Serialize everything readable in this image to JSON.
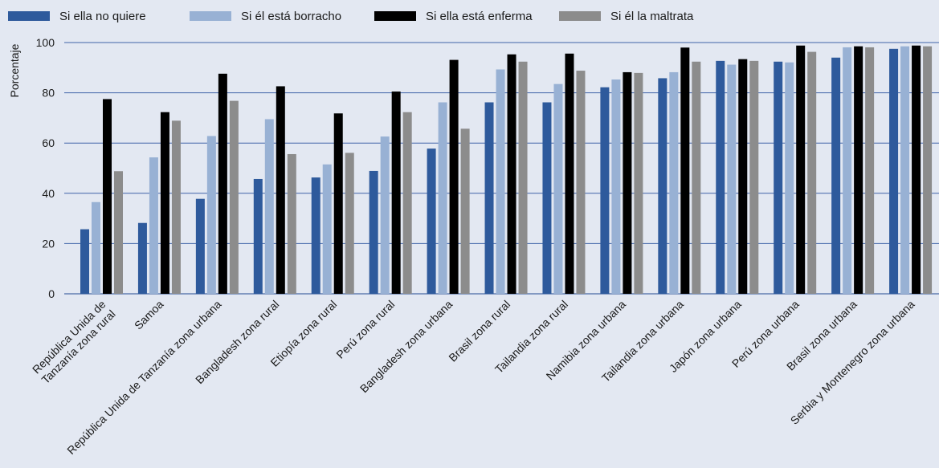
{
  "chart_data": {
    "type": "bar",
    "ylabel": "Porcentaje",
    "ylim": [
      0,
      100
    ],
    "yticks": [
      0,
      20,
      40,
      60,
      80,
      100
    ],
    "grid": true,
    "legend_position": "top",
    "categories": [
      [
        "República Unida de",
        "Tanzanía zona rural"
      ],
      [
        "Samoa"
      ],
      [
        "República Unida de Tanzanía zona urbana"
      ],
      [
        "Bangladesh zona rural"
      ],
      [
        "Etiopía zona rural"
      ],
      [
        "Perú zona rural"
      ],
      [
        "Bangladesh zona urbana"
      ],
      [
        "Brasil zona rural"
      ],
      [
        "Tailandia zona rural"
      ],
      [
        "Namibia zona urbana"
      ],
      [
        "Tailandia zona urbana"
      ],
      [
        "Japón zona urbana"
      ],
      [
        "Perú zona urbana"
      ],
      [
        "Brasil zona urbana"
      ],
      [
        "Serbia y Montenegro zona urbana"
      ]
    ],
    "series": [
      {
        "name": "Si ella no quiere",
        "color": "#2e5a9c",
        "values": [
          25.7,
          28.2,
          37.8,
          45.7,
          46.3,
          48.9,
          57.8,
          76.2,
          76.2,
          82.2,
          85.8,
          92.7,
          92.4,
          94.0,
          97.5
        ]
      },
      {
        "name": "Si él está borracho",
        "color": "#98b1d4",
        "values": [
          36.5,
          54.3,
          62.8,
          69.5,
          51.5,
          62.6,
          76.2,
          89.3,
          83.5,
          85.3,
          88.2,
          91.2,
          92.1,
          98.1,
          98.5
        ]
      },
      {
        "name": "Si ella está enferma",
        "color": "#000000",
        "values": [
          77.5,
          72.3,
          87.6,
          82.6,
          71.8,
          80.5,
          93.1,
          95.3,
          95.6,
          88.2,
          98.0,
          93.4,
          98.8,
          98.5,
          98.8
        ]
      },
      {
        "name": "Si él la maltrata",
        "color": "#8c8c8c",
        "values": [
          48.8,
          68.9,
          76.8,
          55.6,
          56.1,
          72.3,
          65.7,
          92.4,
          88.8,
          87.9,
          92.4,
          92.7,
          96.3,
          98.1,
          98.5
        ]
      }
    ]
  }
}
